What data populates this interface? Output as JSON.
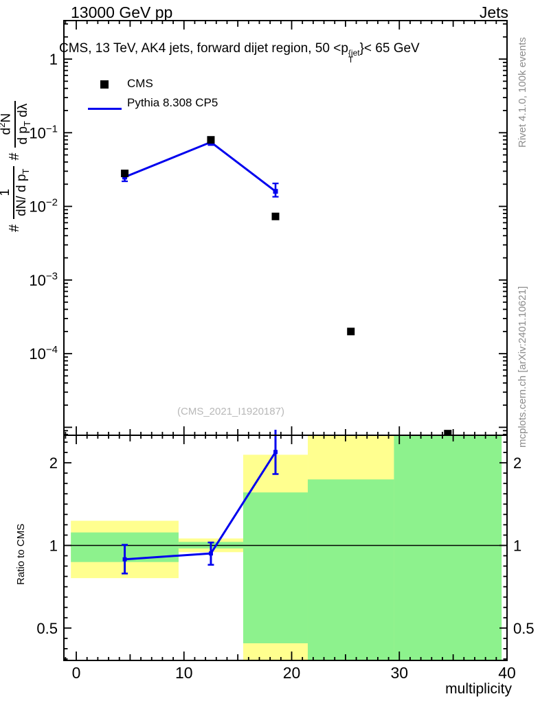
{
  "header": {
    "left": "13000 GeV pp",
    "right": "Jets"
  },
  "panel_title": {
    "pre": "CMS, 13 TeV, AK4 jets, forward dijet region, 50 <p",
    "sup": "{jet",
    "sub": "T",
    "post": "}< 65 GeV"
  },
  "legend": {
    "cms_label": "CMS",
    "mc_label": "Pythia 8.308 CP5"
  },
  "y_axis_label": {
    "hash1": "#",
    "frac1_num": "1",
    "frac1_den_pre": "dN/ d p",
    "frac1_den_sub": "T",
    "hash2": "#",
    "frac2_num_pre": "d",
    "frac2_num_sup": "2",
    "frac2_num_post": "N",
    "frac2_den_pre": "d p",
    "frac2_den_sub": "T",
    "frac2_den_post": " dλ"
  },
  "ratio_axis_label": "Ratio to CMS",
  "x_axis_label": "multiplicity",
  "watermark": "(CMS_2021_I1920187)",
  "side_notes": {
    "top_right": "Rivet 4.1.0,  100k events",
    "bottom_right": "mcplots.cern.ch [arXiv:2401.10621]"
  },
  "colors": {
    "mc_line": "#0000ee",
    "band_yellow": "#ffff8f",
    "band_green": "#8df28d",
    "gray_text": "#8c8c8c",
    "watermark_gray": "#b8b8b8",
    "axis_black": "#000000"
  },
  "chart_data": {
    "type": "line",
    "title_plain": "CMS, 13 TeV, AK4 jets, forward dijet region, 50 < pT{jet} < 65 GeV",
    "xlabel": "multiplicity",
    "x_domain": [
      -1.15,
      40
    ],
    "x_ticks": {
      "major": [
        0,
        10,
        20,
        30,
        40
      ],
      "labels": [
        "0",
        "10",
        "20",
        "30",
        "40"
      ],
      "minor_step": 1,
      "medium_step": 5
    },
    "bin_edges": [
      -0.5,
      9.5,
      15.5,
      21.5,
      29.5,
      39.5
    ],
    "main_panel": {
      "y_scale": "log",
      "y_domain": [
        7.8e-06,
        3.33
      ],
      "y_ticks": [
        {
          "value": 1,
          "base": "1",
          "exp": null
        },
        {
          "value": 0.1,
          "base": "10",
          "exp": "−1"
        },
        {
          "value": 0.01,
          "base": "10",
          "exp": "−2"
        },
        {
          "value": 0.001,
          "base": "10",
          "exp": "−3"
        },
        {
          "value": 0.0001,
          "base": "10",
          "exp": "−4"
        }
      ],
      "cms": {
        "x": [
          4.5,
          12.5,
          18.5,
          25.5,
          34.5
        ],
        "y": [
          0.028,
          0.08,
          0.0073,
          0.0002,
          8.2e-06
        ]
      },
      "pythia": {
        "x": [
          4.5,
          12.5,
          18.5
        ],
        "y": [
          0.025,
          0.0745,
          0.016
        ],
        "y_lo": [
          0.0219,
          0.068,
          0.0135
        ],
        "y_hi": [
          0.029,
          0.081,
          0.0205
        ]
      }
    },
    "ratio_panel": {
      "y_scale": "log",
      "y_domain": [
        0.381,
        2.52
      ],
      "y_ticks": [
        {
          "value": 2,
          "label": "2"
        },
        {
          "value": 1,
          "label": "1"
        },
        {
          "value": 0.5,
          "label": "0.5"
        }
      ],
      "reference_line": 1,
      "bands": [
        {
          "x0": -0.5,
          "x1": 9.5,
          "yellow": [
            0.76,
            1.23
          ],
          "green": [
            0.87,
            1.115
          ]
        },
        {
          "x0": 9.5,
          "x1": 15.5,
          "yellow": [
            0.945,
            1.06
          ],
          "green": [
            0.975,
            1.03
          ]
        },
        {
          "x0": 15.5,
          "x1": 21.5,
          "yellow": [
            0.375,
            2.14
          ],
          "green": [
            0.44,
            1.56
          ]
        },
        {
          "x0": 21.5,
          "x1": 29.5,
          "yellow": [
            0.375,
            2.55
          ],
          "green": [
            0.375,
            1.74
          ]
        },
        {
          "x0": 29.5,
          "x1": 39.5,
          "yellow": null,
          "green": [
            0.375,
            2.55
          ]
        }
      ],
      "pythia": {
        "x": [
          4.5,
          12.5,
          18.5
        ],
        "y": [
          0.89,
          0.935,
          2.19
        ],
        "y_lo": [
          0.79,
          0.85,
          1.82
        ],
        "y_hi": [
          1.005,
          1.025,
          2.7
        ]
      }
    }
  }
}
